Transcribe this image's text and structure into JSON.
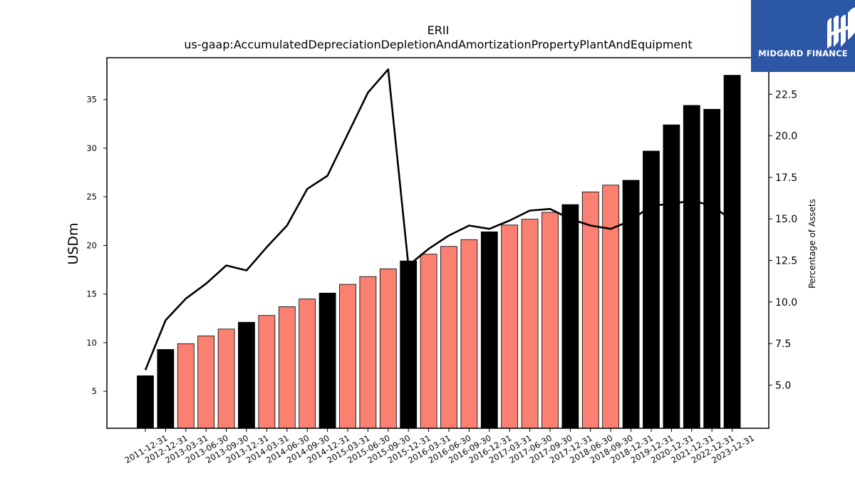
{
  "chart_data": {
    "type": "bar",
    "title": "ERII",
    "subtitle": "us-gaap:AccumulatedDepreciationDepletionAndAmortizationPropertyPlantAndEquipment",
    "ylabel": "USDm",
    "y2label": "Percentage of Assets",
    "ylim": [
      1.2,
      39.3
    ],
    "y2lim": [
      2.4,
      24.7
    ],
    "yticks": [
      5,
      10,
      15,
      20,
      25,
      30,
      35
    ],
    "y2ticks": [
      "5.0",
      "7.5",
      "10.0",
      "12.5",
      "15.0",
      "17.5",
      "20.0",
      "22.5"
    ],
    "categories": [
      "2011-12-31",
      "2012-12-31",
      "2013-03-31",
      "2013-06-30",
      "2013-09-30",
      "2013-12-31",
      "2014-03-31",
      "2014-06-30",
      "2014-09-30",
      "2014-12-31",
      "2015-03-31",
      "2015-06-30",
      "2015-09-30",
      "2015-12-31",
      "2016-03-31",
      "2016-06-30",
      "2016-09-30",
      "2016-12-31",
      "2017-03-31",
      "2017-06-30",
      "2017-09-30",
      "2017-12-31",
      "2018-06-30",
      "2018-09-30",
      "2018-12-31",
      "2019-12-31",
      "2020-12-31",
      "2021-12-31",
      "2022-12-31",
      "2023-12-31"
    ],
    "values": [
      6.6,
      9.3,
      9.9,
      10.7,
      11.4,
      12.1,
      12.8,
      13.7,
      14.5,
      15.1,
      16.0,
      16.8,
      17.6,
      18.4,
      19.1,
      19.9,
      20.6,
      21.4,
      22.1,
      22.7,
      23.4,
      24.2,
      25.5,
      26.2,
      26.7,
      29.7,
      32.4,
      34.4,
      34.0,
      37.5
    ],
    "bar_types": [
      "annual",
      "annual",
      "quarter",
      "quarter",
      "quarter",
      "annual",
      "quarter",
      "quarter",
      "quarter",
      "annual",
      "quarter",
      "quarter",
      "quarter",
      "annual",
      "quarter",
      "quarter",
      "quarter",
      "annual",
      "quarter",
      "quarter",
      "quarter",
      "annual",
      "quarter",
      "quarter",
      "annual",
      "annual",
      "annual",
      "annual",
      "annual",
      "annual"
    ],
    "colors": {
      "annual": "#000000",
      "quarter": "#fa8072",
      "line": "#000000"
    },
    "series": [
      {
        "values_pct": [
          5.9,
          8.9,
          10.2,
          11.1,
          12.2,
          11.9,
          13.3,
          14.6,
          16.8,
          17.6,
          20.1,
          22.6,
          24.0,
          12.2,
          13.2,
          14.0,
          14.6,
          14.4,
          14.9,
          15.5,
          15.6,
          15.0,
          14.6,
          14.4,
          14.9,
          15.8,
          15.9,
          16.1,
          15.8,
          14.9
        ]
      }
    ],
    "grid": false
  },
  "logo": {
    "text": "MIDGARD FINANCE",
    "background": "#2b57a6"
  }
}
